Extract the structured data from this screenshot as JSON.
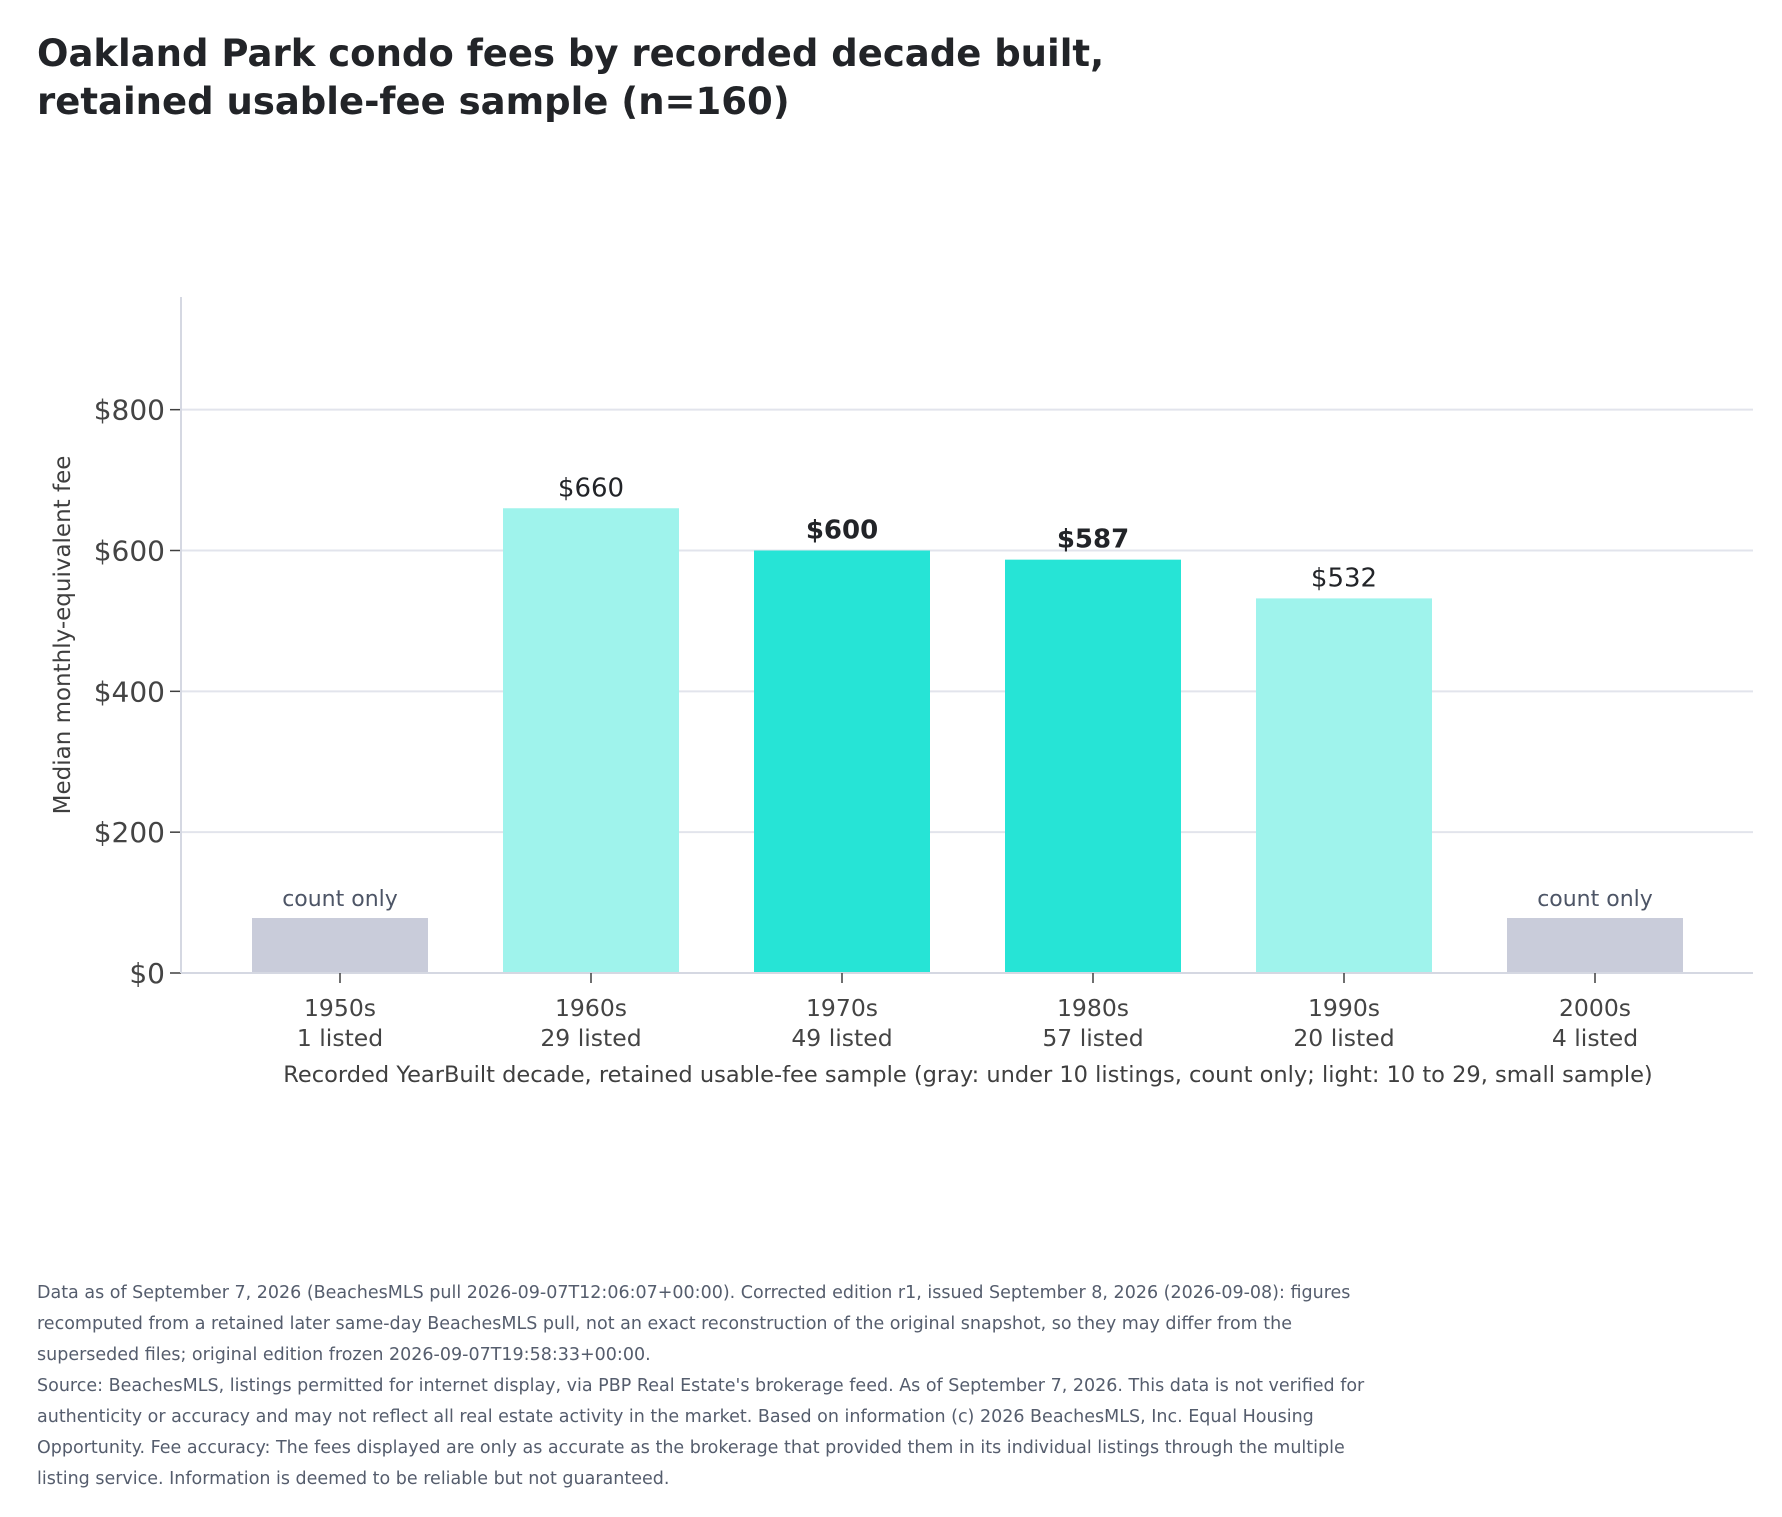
{
  "header": {
    "title": "Oakland Park condo fees by recorded decade built, retained usable-fee sample (n=160)"
  },
  "colors": {
    "count_only": "#c9ccda",
    "small_sample": "#9ff3ec",
    "full_sample": "#26e4d6",
    "grid": "#e2e4ec",
    "axis": "#d5d8e2",
    "tick_text": "#444444",
    "label_text": "#222428",
    "count_only_text": "#4d5566"
  },
  "chart_data": {
    "type": "bar",
    "title": "Oakland Park condo fees by recorded decade built, retained usable-fee sample (n=160)",
    "xlabel": "Recorded YearBuilt decade, retained usable-fee sample (gray: under 10 listings, count only; light: 10 to 29, small sample)",
    "ylabel": "Median monthly-equivalent fee",
    "ylim": [
      0,
      960
    ],
    "yticks": [
      0,
      200,
      400,
      600,
      800
    ],
    "ytick_labels": [
      "$0",
      "$200",
      "$400",
      "$600",
      "$800"
    ],
    "grid": "horizontal",
    "categories": [
      "1950s",
      "1960s",
      "1970s",
      "1980s",
      "1990s",
      "2000s"
    ],
    "category_counts": [
      "1 listed",
      "29 listed",
      "49 listed",
      "57 listed",
      "20 listed",
      "4 listed"
    ],
    "values": [
      null,
      660,
      600,
      587,
      532,
      null
    ],
    "value_labels": [
      "count only",
      "$660",
      "$600",
      "$587",
      "$532",
      "count only"
    ],
    "sample_class": [
      "count_only",
      "small_sample",
      "full_sample",
      "full_sample",
      "small_sample",
      "count_only"
    ]
  },
  "footer": {
    "notes": [
      "Data as of September 7, 2026 (BeachesMLS pull 2026-09-07T12:06:07+00:00). Corrected edition r1, issued September 8, 2026 (2026-09-08): figures recomputed from a retained later same-day BeachesMLS pull, not an exact reconstruction of the original snapshot, so they may differ from the superseded files; original edition frozen 2026-09-07T19:58:33+00:00.",
      "Source: BeachesMLS, listings permitted for internet display, via PBP Real Estate's brokerage feed. As of September 7, 2026. This data is not verified for authenticity or accuracy and may not reflect all real estate activity in the market. Based on information (c) 2026 BeachesMLS, Inc. Equal Housing Opportunity. Fee accuracy: The fees displayed are only as accurate as the brokerage that provided them in its individual listings through the multiple listing service. Information is deemed to be reliable but not guaranteed."
    ]
  }
}
